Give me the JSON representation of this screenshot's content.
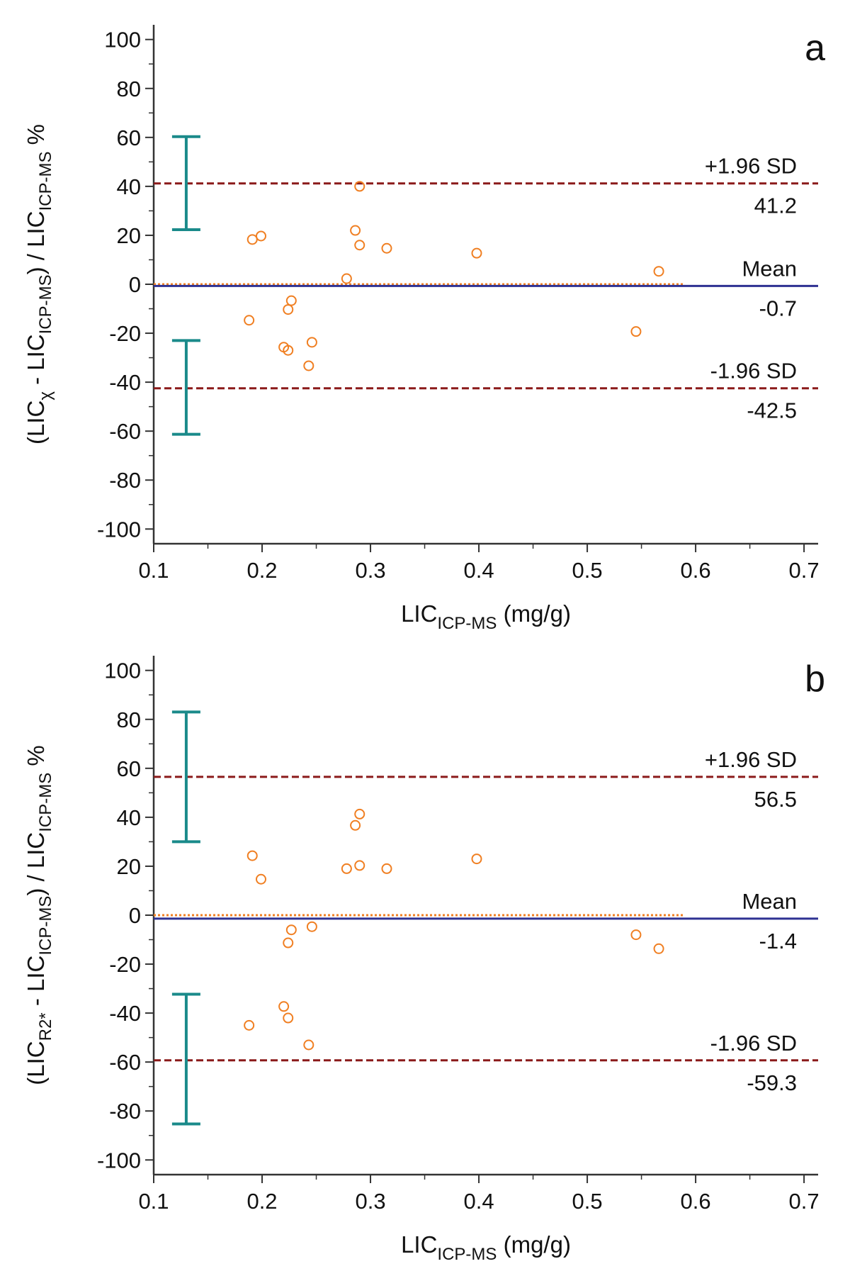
{
  "chart_data": [
    {
      "type": "scatter",
      "panel_label": "a",
      "ylabel": [
        "(LIC",
        "χ",
        " - LIC",
        "ICP-MS",
        ") / LIC",
        "ICP-MS",
        " %"
      ],
      "xlabel": [
        "LIC",
        "ICP-MS",
        " (mg/g)"
      ],
      "x": [
        0.191,
        0.199,
        0.188,
        0.286,
        0.29,
        0.29,
        0.315,
        0.278,
        0.398,
        0.566,
        0.227,
        0.224,
        0.22,
        0.224,
        0.246,
        0.243,
        0.545
      ],
      "values": [
        18.3,
        19.7,
        -14.7,
        22,
        40,
        16,
        14.7,
        2.3,
        12.7,
        5.3,
        -6.7,
        -10.3,
        -25.7,
        -27,
        -23.7,
        -33.3,
        -19.3
      ],
      "color": "#f07f22",
      "xlim": [
        0.1,
        0.713
      ],
      "xticks": [
        0.1,
        0.2,
        0.3,
        0.4,
        0.5,
        0.6,
        0.7
      ],
      "ylim": [
        -106,
        106
      ],
      "yticks": [
        -100,
        -80,
        -60,
        -40,
        -20,
        0,
        20,
        40,
        60,
        80,
        100
      ],
      "reference_lines": [
        {
          "label": "+1.96 SD",
          "value": 41.2,
          "color": "#8b1a1a",
          "style": "dashed"
        },
        {
          "label": "Mean",
          "value": -0.7,
          "color": "#2e3192",
          "style": "solid"
        },
        {
          "label": "-1.96 SD",
          "value": -42.5,
          "color": "#8b1a1a",
          "style": "dashed"
        }
      ],
      "zero_line": {
        "value": 0,
        "x_end": 0.59,
        "color": "#f07f22"
      },
      "intervals": [
        {
          "x": 0.13,
          "low": 22.3,
          "high": 60.3
        },
        {
          "x": 0.13,
          "low": -61.3,
          "high": -23
        }
      ],
      "interval_color": "#1a8a8a"
    },
    {
      "type": "scatter",
      "panel_label": "b",
      "ylabel": [
        "(LIC",
        "R2*",
        " - LIC",
        "ICP-MS",
        ") / LIC",
        "ICP-MS",
        " %"
      ],
      "xlabel": [
        "LIC",
        "ICP-MS",
        " (mg/g)"
      ],
      "x": [
        0.191,
        0.199,
        0.188,
        0.286,
        0.29,
        0.29,
        0.278,
        0.315,
        0.398,
        0.227,
        0.224,
        0.246,
        0.22,
        0.224,
        0.243,
        0.545,
        0.566
      ],
      "values": [
        24.3,
        14.7,
        -45,
        36.7,
        41.3,
        20.3,
        19,
        19,
        23,
        -6,
        -11.3,
        -4.7,
        -37.3,
        -42,
        -53,
        -8,
        -13.7
      ],
      "color": "#f07f22",
      "xlim": [
        0.1,
        0.713
      ],
      "xticks": [
        0.1,
        0.2,
        0.3,
        0.4,
        0.5,
        0.6,
        0.7
      ],
      "ylim": [
        -106,
        106
      ],
      "yticks": [
        -100,
        -80,
        -60,
        -40,
        -20,
        0,
        20,
        40,
        60,
        80,
        100
      ],
      "reference_lines": [
        {
          "label": "+1.96 SD",
          "value": 56.5,
          "color": "#8b1a1a",
          "style": "dashed"
        },
        {
          "label": "Mean",
          "value": -1.4,
          "color": "#2e3192",
          "style": "solid"
        },
        {
          "label": "-1.96 SD",
          "value": -59.3,
          "color": "#8b1a1a",
          "style": "dashed"
        }
      ],
      "zero_line": {
        "value": 0,
        "x_end": 0.59,
        "color": "#f07f22"
      },
      "intervals": [
        {
          "x": 0.13,
          "low": 30,
          "high": 83
        },
        {
          "x": 0.13,
          "low": -85.3,
          "high": -32.3
        }
      ],
      "interval_color": "#1a8a8a"
    }
  ]
}
